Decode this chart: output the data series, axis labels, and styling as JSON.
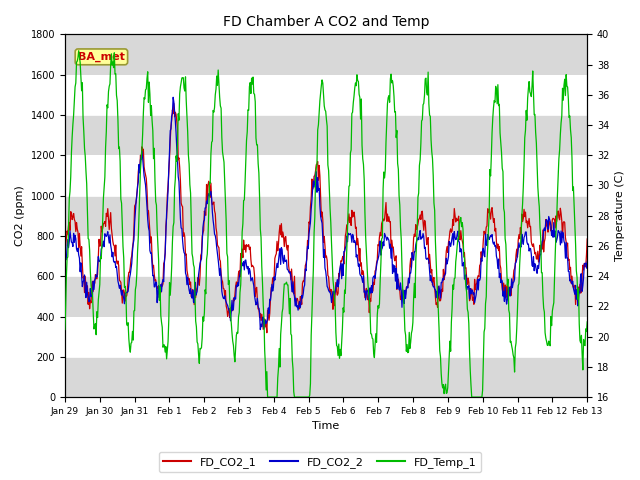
{
  "title": "FD Chamber A CO2 and Temp",
  "xlabel": "Time",
  "ylabel_left": "CO2 (ppm)",
  "ylabel_right": "Temperature (C)",
  "annotation": "BA_met",
  "ylim_left": [
    0,
    1800
  ],
  "ylim_right": [
    16,
    40
  ],
  "yticks_left": [
    0,
    200,
    400,
    600,
    800,
    1000,
    1200,
    1400,
    1600,
    1800
  ],
  "yticks_right": [
    16,
    18,
    20,
    22,
    24,
    26,
    28,
    30,
    32,
    34,
    36,
    38,
    40
  ],
  "xtick_labels": [
    "Jan 29",
    "Jan 30",
    "Jan 31",
    "Feb 1",
    "Feb 2",
    "Feb 3",
    "Feb 4",
    "Feb 5",
    "Feb 6",
    "Feb 7",
    "Feb 8",
    "Feb 9",
    "Feb 10",
    "Feb 11",
    "Feb 12",
    "Feb 13"
  ],
  "color_co2_1": "#cc0000",
  "color_co2_2": "#0000cc",
  "color_temp": "#00bb00",
  "legend_labels": [
    "FD_CO2_1",
    "FD_CO2_2",
    "FD_Temp_1"
  ],
  "background_color": "#ffffff",
  "grid_band_color": "#d8d8d8",
  "annotation_bg": "#ffff99",
  "annotation_border": "#999933",
  "n_points": 720
}
